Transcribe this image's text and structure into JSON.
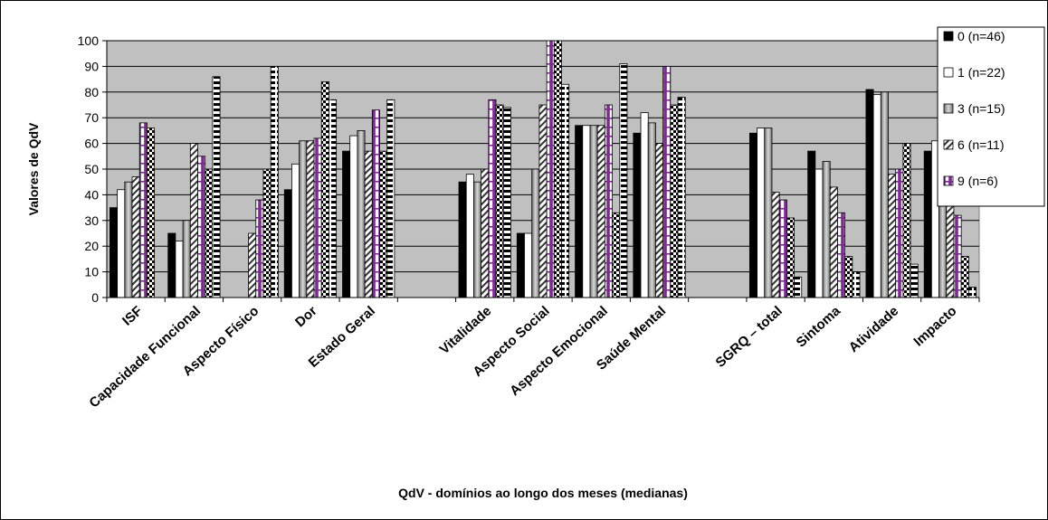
{
  "chart_data": {
    "type": "bar",
    "title": "",
    "xlabel": "QdV - domínios ao longo dos meses (medianas)",
    "ylabel": "Valores de QdV",
    "ylim": [
      0,
      100
    ],
    "yticks": [
      0,
      10,
      20,
      30,
      40,
      50,
      60,
      70,
      80,
      90,
      100
    ],
    "grid": true,
    "legend_position": "right",
    "categories": [
      "ISF",
      "Capacidade Funcional",
      "Aspecto Físico",
      "Dor",
      "Estado Geral",
      "",
      "Vitalidade",
      "Aspecto Social",
      "Aspecto Emocional",
      "Saúde Mental",
      "",
      "SGRQ – total",
      "Sintoma",
      "Atividade",
      "Impacto"
    ],
    "series": [
      {
        "name": "0 (n=46)",
        "pattern": "solid-black",
        "values": [
          35,
          25,
          0,
          42,
          57,
          null,
          45,
          25,
          67,
          64,
          null,
          64,
          57,
          81,
          57
        ]
      },
      {
        "name": "1 (n=22)",
        "pattern": "white",
        "values": [
          42,
          22,
          0,
          52,
          63,
          null,
          48,
          25,
          67,
          72,
          null,
          66,
          50,
          79,
          61
        ]
      },
      {
        "name": "3 (n=15)",
        "pattern": "gray-gradient",
        "values": [
          45,
          30,
          0,
          61,
          65,
          null,
          45,
          50,
          67,
          68,
          null,
          66,
          53,
          80,
          58
        ]
      },
      {
        "name": "6 (n=11)",
        "pattern": "diagonal-hatch",
        "values": [
          47,
          60,
          25,
          61,
          57,
          null,
          50,
          75,
          67,
          60,
          null,
          41,
          43,
          48,
          42
        ]
      },
      {
        "name": "9 (n=6)",
        "pattern": "purple-vertical",
        "values": [
          68,
          55,
          38,
          62,
          73,
          null,
          77,
          100,
          75,
          90,
          null,
          38,
          33,
          50,
          32
        ]
      },
      {
        "name": "",
        "pattern": "checker",
        "values": [
          66,
          50,
          50,
          84,
          57,
          null,
          75,
          100,
          33,
          75,
          null,
          31,
          16,
          60,
          16
        ]
      },
      {
        "name": "",
        "pattern": "horizontal-dash",
        "values": [
          0,
          86,
          90,
          77,
          77,
          null,
          74,
          83,
          91,
          78,
          null,
          8,
          10,
          13,
          4
        ]
      }
    ]
  }
}
